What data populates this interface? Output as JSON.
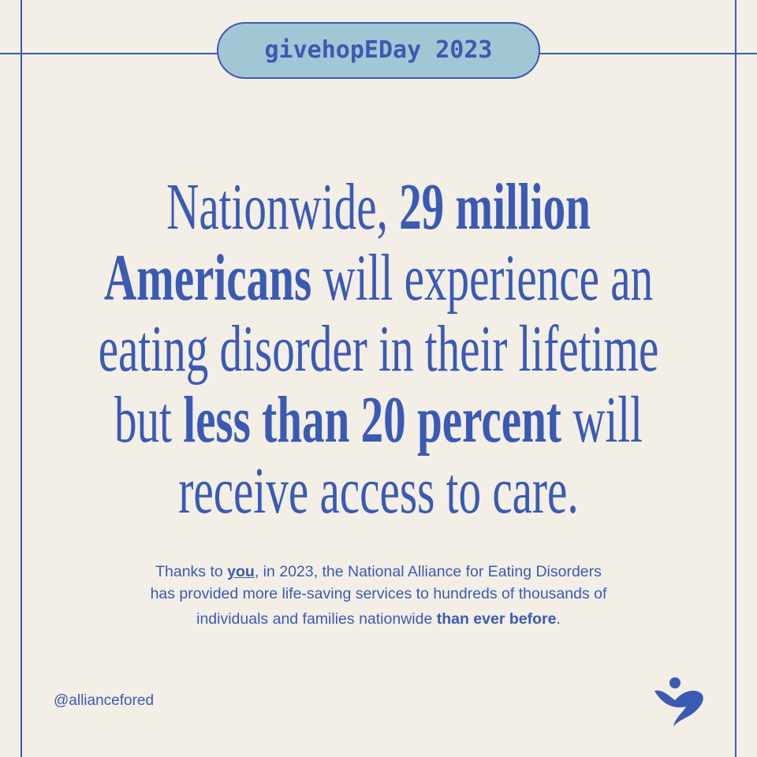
{
  "badge": "givehopEDay 2023",
  "headline": [
    [
      "Nationwide, ",
      "29 million"
    ],
    [
      "Americans",
      " will experience an"
    ],
    [
      "eating disorder in their lifetime"
    ],
    [
      "but ",
      "less than 20 percent",
      " will"
    ],
    [
      "receive access to care."
    ]
  ],
  "body": [
    [
      "Thanks to ",
      "you",
      ", in 2023, the National Alliance for Eating Disorders"
    ],
    [
      "has provided more life-saving services to hundreds of thousands of"
    ],
    [
      "individuals and families nationwide ",
      "than ever before",
      "."
    ]
  ],
  "handle": "@alliancefored"
}
